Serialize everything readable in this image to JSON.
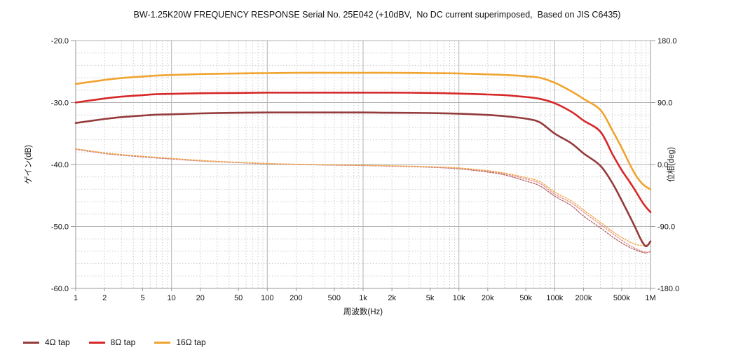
{
  "title": "BW-1.25K20W FREQUENCY RESPONSE Serial No. 25E042 (+10dBV,  No DC current superimposed,  Based on JIS C6435)",
  "colors": {
    "tap4": "#943b3c",
    "tap8": "#d62828",
    "tap16": "#f0a42f",
    "phase4": "#ad6263",
    "phase8": "#e98b8b",
    "phase16": "#f1a844",
    "grid_major": "#b3b3b3",
    "grid_minor": "#cccccc",
    "axis_line": "#9a9a9a",
    "text": "#111111"
  },
  "axes": {
    "x": {
      "label": "周波数(Hz)",
      "scale": "log",
      "min": 1,
      "max": 1000000,
      "tick_labels": [
        "1",
        "2",
        "5",
        "10",
        "20",
        "50",
        "100",
        "200",
        "500",
        "1k",
        "2k",
        "5k",
        "10k",
        "20k",
        "50k",
        "100k",
        "200k",
        "500k",
        "1M"
      ],
      "tick_values": [
        1,
        2,
        5,
        10,
        20,
        50,
        100,
        200,
        500,
        1000,
        2000,
        5000,
        10000,
        20000,
        50000,
        100000,
        200000,
        500000,
        1000000
      ]
    },
    "y_left": {
      "label": "ゲイン(dB)",
      "min": -60,
      "max": -20,
      "tick_labels": [
        "-20.0",
        "-30.0",
        "-40.0",
        "-50.0",
        "-60.0"
      ],
      "tick_values": [
        -20,
        -30,
        -40,
        -50,
        -60
      ],
      "minor_step": 2
    },
    "y_right": {
      "label": "位相(deg)",
      "min": -180,
      "max": 180,
      "tick_labels": [
        "180.0",
        "90.0",
        "0.0",
        "-90.0",
        "-180.0"
      ],
      "tick_values": [
        180,
        90,
        0,
        -90,
        -180
      ]
    }
  },
  "legend": [
    {
      "key": "4ohm-tap",
      "label": "4Ω tap",
      "color": "#943b3c"
    },
    {
      "key": "8ohm-tap",
      "label": "8Ω tap",
      "color": "#d62828"
    },
    {
      "key": "16ohm-tap",
      "label": "16Ω tap",
      "color": "#f0a42f"
    }
  ],
  "chart_data": {
    "type": "line",
    "x": [
      1,
      2,
      3,
      5,
      7,
      10,
      20,
      50,
      100,
      200,
      500,
      1000,
      2000,
      5000,
      10000,
      20000,
      30000,
      50000,
      70000,
      100000,
      150000,
      200000,
      300000,
      400000,
      500000,
      600000,
      700000,
      800000,
      900000,
      1000000
    ],
    "series": [
      {
        "name": "4Ω tap phase",
        "key": "phase-4ohm",
        "axis": "right",
        "style": "dotted",
        "color": "#ad6263",
        "values": [
          22,
          16,
          13.5,
          11,
          9.5,
          8,
          5.2,
          2.7,
          1,
          0,
          -1,
          -1.5,
          -2.4,
          -4,
          -6.3,
          -11,
          -15,
          -24,
          -31,
          -46,
          -60,
          -75,
          -92,
          -105,
          -114,
          -120,
          -124,
          -127,
          -128.5,
          -126
        ]
      },
      {
        "name": "8Ω tap phase",
        "key": "phase-8ohm",
        "axis": "right",
        "style": "dotted",
        "color": "#e98b8b",
        "values": [
          22.5,
          16.5,
          14,
          11.5,
          10,
          8.5,
          5.6,
          3,
          1.3,
          0.3,
          -0.7,
          -1.2,
          -2,
          -3.5,
          -5.5,
          -9.8,
          -13.5,
          -21,
          -27.5,
          -43,
          -56,
          -69,
          -87,
          -100,
          -110,
          -117,
          -122,
          -125.5,
          -127.5,
          -127
        ]
      },
      {
        "name": "16Ω tap phase",
        "key": "phase-16ohm",
        "axis": "right",
        "style": "dotted",
        "color": "#f1a844",
        "values": [
          23,
          17,
          14.5,
          12,
          10.5,
          9,
          6,
          3.2,
          1.5,
          0.5,
          -0.5,
          -1,
          -1.8,
          -3.2,
          -5,
          -9,
          -12.5,
          -19,
          -25,
          -40,
          -53,
          -66,
          -84,
          -97,
          -106,
          -112,
          -116,
          -117.5,
          -117,
          -114
        ]
      },
      {
        "name": "4Ω tap gain",
        "key": "gain-4ohm",
        "axis": "left",
        "style": "solid",
        "color": "#943b3c",
        "values": [
          -33.3,
          -32.65,
          -32.35,
          -32.1,
          -31.95,
          -31.9,
          -31.75,
          -31.65,
          -31.6,
          -31.6,
          -31.6,
          -31.6,
          -31.65,
          -31.7,
          -31.8,
          -32.0,
          -32.2,
          -32.6,
          -33.2,
          -35.0,
          -36.6,
          -38.2,
          -40.2,
          -43.0,
          -45.8,
          -48.2,
          -50.3,
          -52.2,
          -53.2,
          -52.4
        ]
      },
      {
        "name": "8Ω tap gain",
        "key": "gain-8ohm",
        "axis": "left",
        "style": "solid",
        "color": "#d62828",
        "values": [
          -30.0,
          -29.35,
          -29.05,
          -28.8,
          -28.65,
          -28.6,
          -28.5,
          -28.45,
          -28.4,
          -28.4,
          -28.4,
          -28.4,
          -28.4,
          -28.45,
          -28.55,
          -28.7,
          -28.8,
          -29.1,
          -29.4,
          -30.1,
          -31.5,
          -32.9,
          -34.7,
          -38.3,
          -40.9,
          -42.7,
          -44.3,
          -45.8,
          -46.9,
          -47.7
        ]
      },
      {
        "name": "16Ω tap gain",
        "key": "gain-16ohm",
        "axis": "left",
        "style": "solid",
        "color": "#f0a42f",
        "values": [
          -27.0,
          -26.35,
          -26.05,
          -25.8,
          -25.65,
          -25.55,
          -25.4,
          -25.3,
          -25.25,
          -25.2,
          -25.2,
          -25.2,
          -25.2,
          -25.25,
          -25.3,
          -25.45,
          -25.55,
          -25.75,
          -26.0,
          -26.8,
          -28.2,
          -29.4,
          -31.2,
          -34.5,
          -37.3,
          -39.8,
          -41.7,
          -42.9,
          -43.6,
          -44.0
        ]
      }
    ],
    "title": "BW-1.25K20W FREQUENCY RESPONSE Serial No. 25E042 (+10dBV,  No DC current superimposed,  Based on JIS C6435)",
    "xlabel": "周波数(Hz)",
    "ylabel_left": "ゲイン(dB)",
    "ylabel_right": "位相(deg)",
    "xlim": [
      1,
      1000000
    ],
    "ylim_left": [
      -60,
      -20
    ],
    "ylim_right": [
      -180,
      180
    ],
    "grid": "on",
    "legend_position": "bottom-left"
  }
}
